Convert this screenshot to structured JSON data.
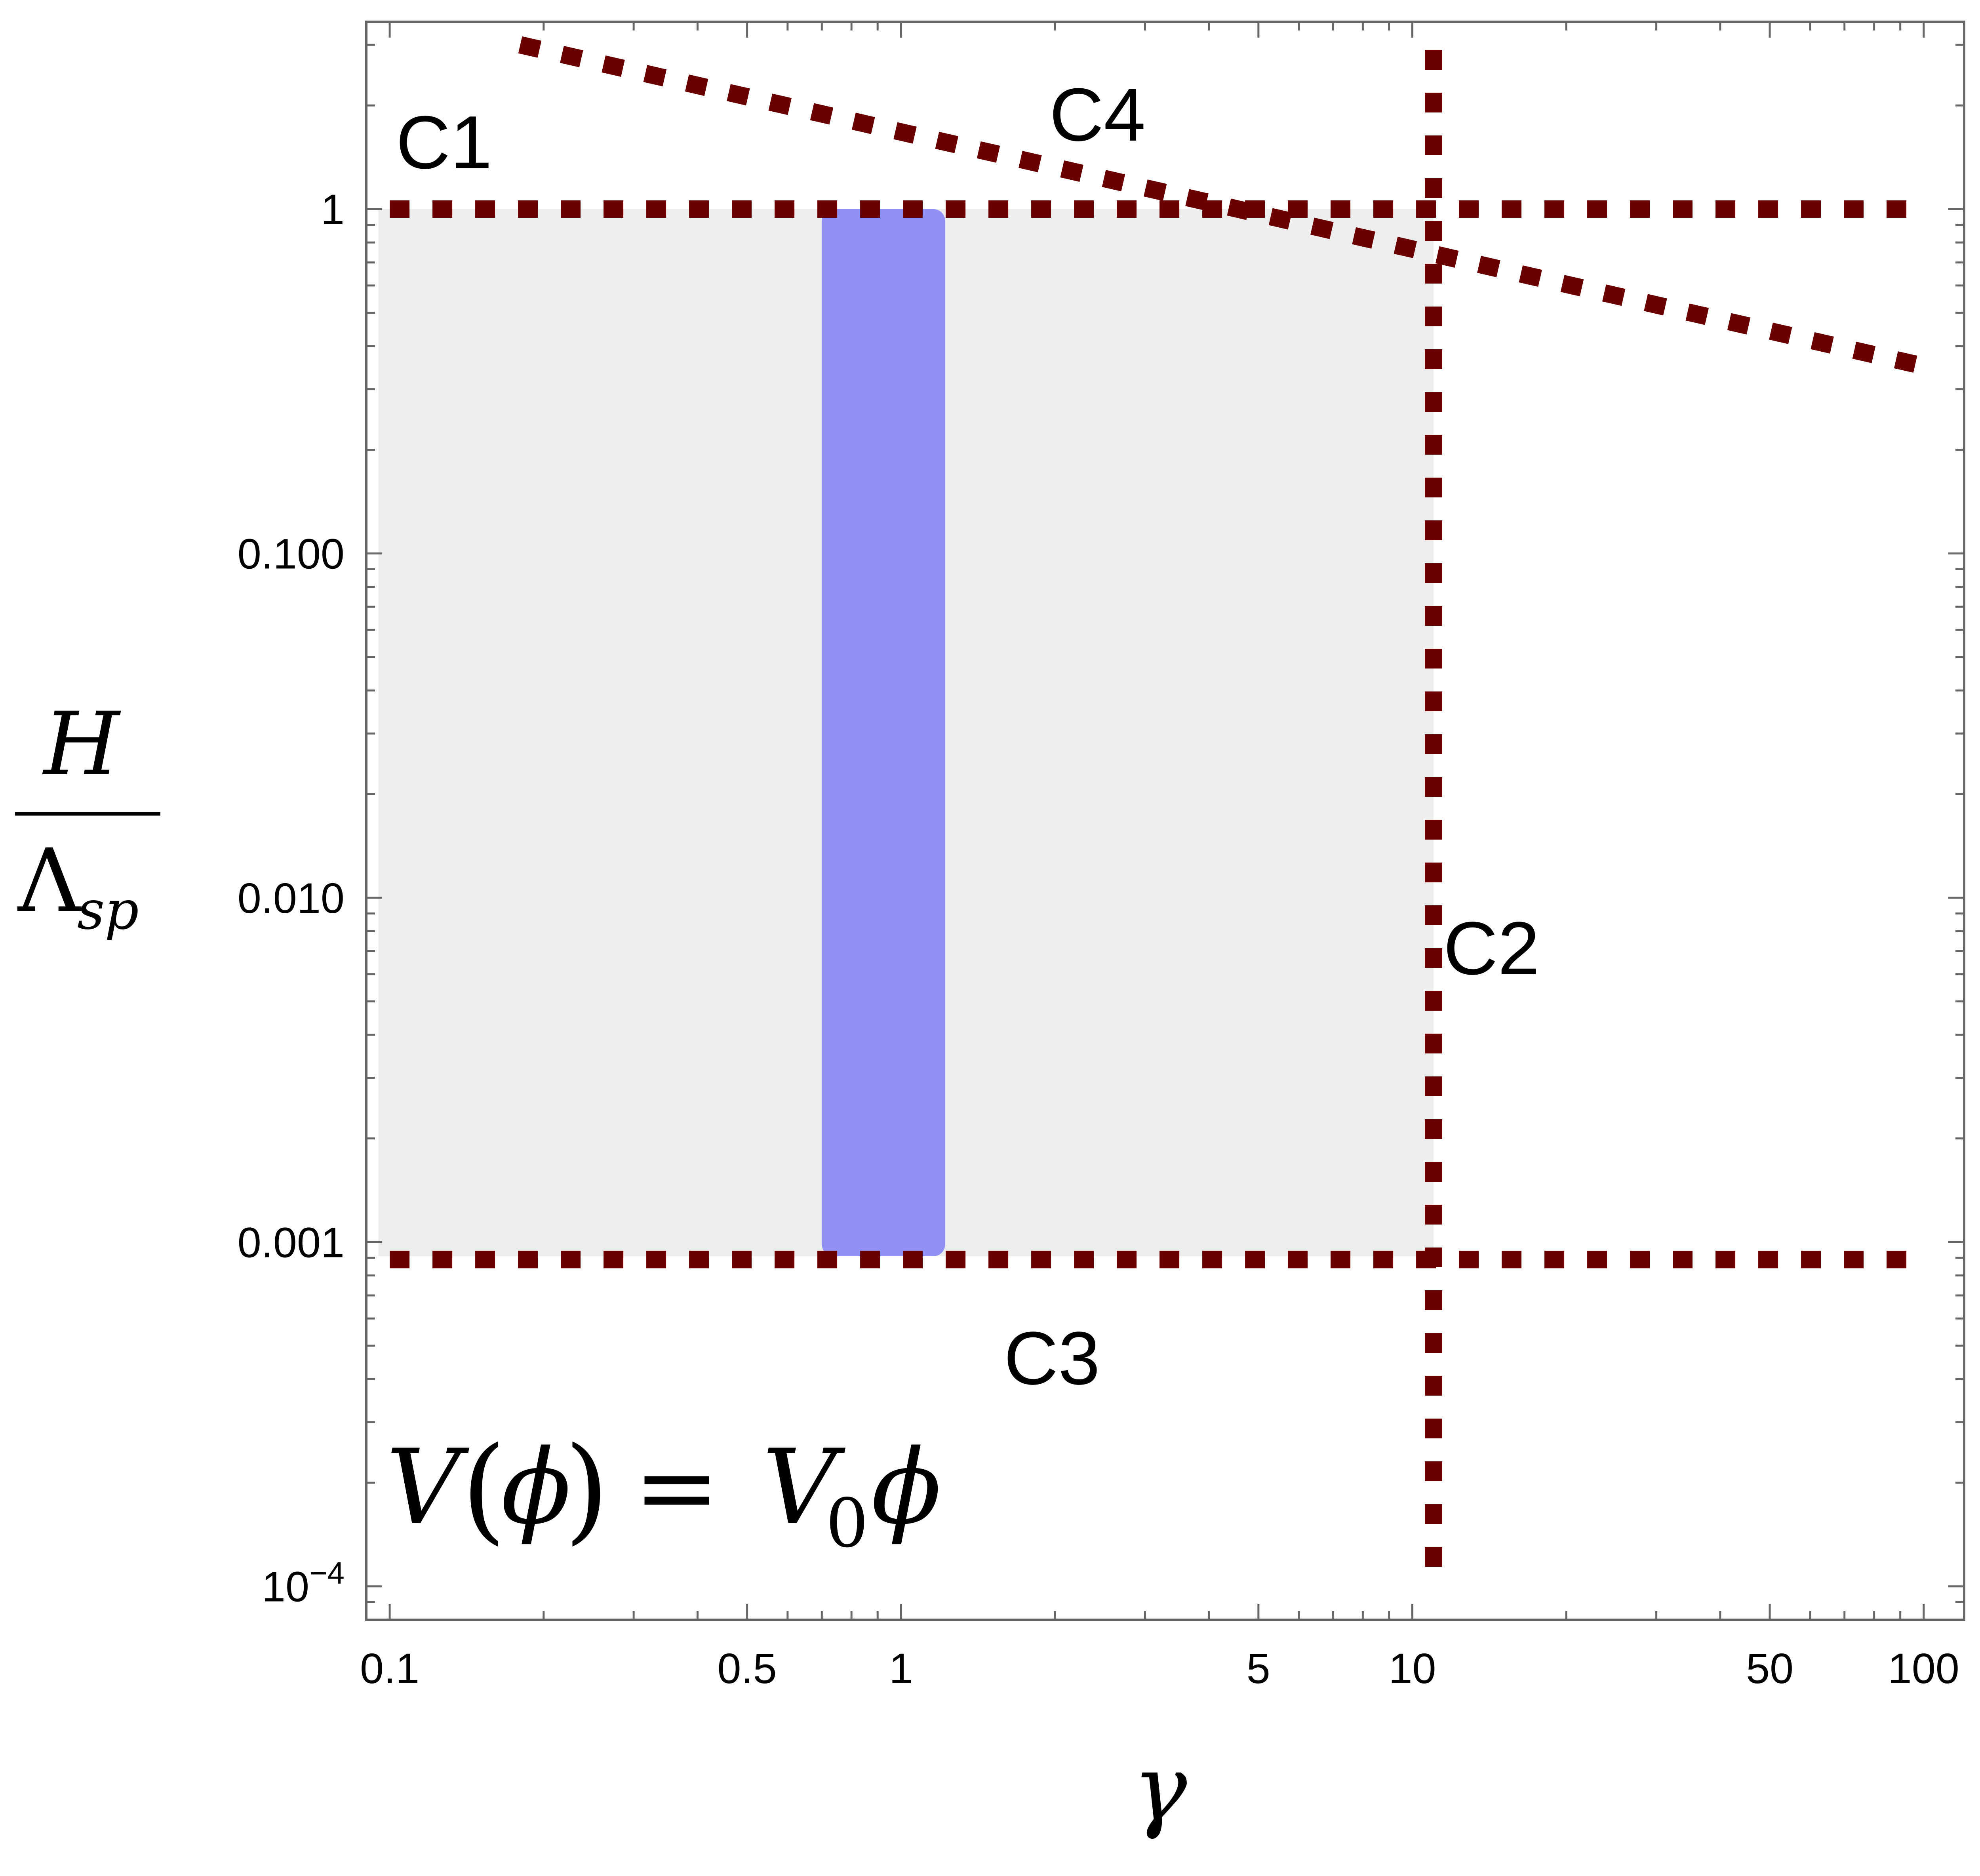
{
  "chart_data": {
    "type": "region",
    "xscale": "log",
    "yscale": "log",
    "xlim": [
      0.09,
      120
    ],
    "ylim": [
      8e-05,
      3.5
    ],
    "xlabel": "γ",
    "ylabel_numerator": "H",
    "ylabel_denominator": "Λ",
    "ylabel_denominator_sub": "sp",
    "annotation": {
      "lhs_V": "V",
      "lhs_open": "(",
      "lhs_phi": "ϕ",
      "lhs_close": ")",
      "equals": "=",
      "rhs_V": "V",
      "rhs_sub": "0",
      "rhs_phi": "ϕ"
    },
    "x_ticks": [
      {
        "value": 0.1,
        "label": "0.1"
      },
      {
        "value": 0.5,
        "label": "0.5"
      },
      {
        "value": 1,
        "label": "1"
      },
      {
        "value": 5,
        "label": "5"
      },
      {
        "value": 10,
        "label": "10"
      },
      {
        "value": 50,
        "label": "50"
      },
      {
        "value": 100,
        "label": "100"
      }
    ],
    "y_ticks": [
      {
        "value": 1,
        "label": "1",
        "sup": ""
      },
      {
        "value": 0.1,
        "label": "0.100",
        "sup": ""
      },
      {
        "value": 0.01,
        "label": "0.010",
        "sup": ""
      },
      {
        "value": 0.001,
        "label": "0.001",
        "sup": ""
      },
      {
        "value": 0.0001,
        "label": "10",
        "sup": "−4"
      }
    ],
    "regions": [
      {
        "id": "allowed",
        "color": "#ededed",
        "x": [
          0.095,
          11
        ],
        "y": [
          0.00091,
          1
        ]
      },
      {
        "id": "band",
        "color": "#9191f5",
        "x": [
          0.7,
          1.22
        ],
        "y": [
          0.00091,
          1
        ]
      }
    ],
    "constraints": [
      {
        "label": "C1",
        "kind": "horizontal",
        "y": 1,
        "x": [
          0.1,
          100
        ]
      },
      {
        "label": "C2",
        "kind": "vertical",
        "x": 11,
        "y": [
          0.00011,
          2.9
        ]
      },
      {
        "label": "C3",
        "kind": "horizontal",
        "y": 0.00089,
        "x": [
          0.1,
          100
        ]
      },
      {
        "label": "C4",
        "kind": "line",
        "x": [
          0.18,
          100
        ],
        "y": [
          3.0,
          0.35
        ]
      }
    ],
    "constraint_color": "#6b0000",
    "grid": false
  }
}
